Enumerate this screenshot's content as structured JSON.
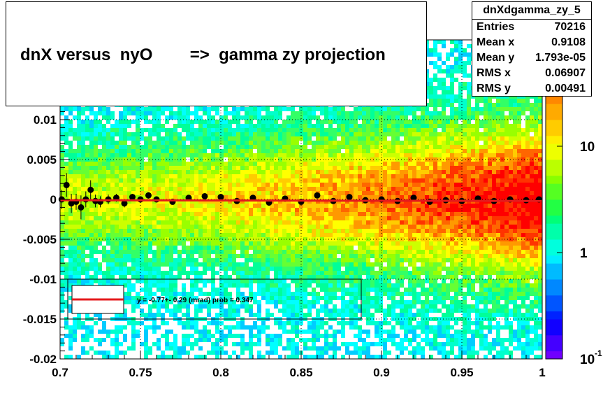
{
  "title": "dnX versus  nyO        =>  gamma zy projection",
  "stats": {
    "name": "dnXdgamma_zy_5",
    "rows": [
      {
        "label": "Entries",
        "value": "70216"
      },
      {
        "label": "Mean x",
        "value": "0.9108"
      },
      {
        "label": "Mean y",
        "value": "1.793e-05"
      },
      {
        "label": "RMS x",
        "value": "0.06907"
      },
      {
        "label": "RMS y",
        "value": "0.00491"
      }
    ]
  },
  "chart_data": {
    "type": "heatmap",
    "title": "dnX versus  nyO        =>  gamma zy projection",
    "xlabel": "",
    "ylabel": "",
    "xlim": [
      0.7,
      1.0
    ],
    "ylim": [
      -0.02,
      0.02
    ],
    "x_ticks": [
      {
        "value": 0.7,
        "label": "0.7"
      },
      {
        "value": 0.75,
        "label": "0.75"
      },
      {
        "value": 0.8,
        "label": "0.8"
      },
      {
        "value": 0.85,
        "label": "0.85"
      },
      {
        "value": 0.9,
        "label": "0.9"
      },
      {
        "value": 0.95,
        "label": "0.95"
      },
      {
        "value": 1.0,
        "label": "1"
      }
    ],
    "y_ticks": [
      {
        "value": -0.02,
        "label": "-0.02"
      },
      {
        "value": -0.015,
        "label": "-0.015"
      },
      {
        "value": -0.01,
        "label": "-0.01"
      },
      {
        "value": -0.005,
        "label": "-0.005"
      },
      {
        "value": 0,
        "label": "0"
      },
      {
        "value": 0.005,
        "label": "0.005"
      },
      {
        "value": 0.01,
        "label": "0.01"
      }
    ],
    "grid": true,
    "colorbar": {
      "scale": "log",
      "range": [
        0.1,
        100
      ],
      "labels": [
        {
          "value": 10,
          "label": "10"
        },
        {
          "value": 1,
          "label": "1"
        },
        {
          "value": 0.1,
          "label": "10",
          "exponent": "-1"
        }
      ]
    },
    "profile_points": [
      {
        "x": 0.701,
        "y": 0.0,
        "err": 0.0012
      },
      {
        "x": 0.704,
        "y": 0.0018,
        "err": 0.0015
      },
      {
        "x": 0.707,
        "y": -0.0005,
        "err": 0.0012
      },
      {
        "x": 0.71,
        "y": -0.0003,
        "err": 0.001
      },
      {
        "x": 0.713,
        "y": -0.001,
        "err": 0.0015
      },
      {
        "x": 0.716,
        "y": 0.0,
        "err": 0.001
      },
      {
        "x": 0.719,
        "y": 0.0012,
        "err": 0.0012
      },
      {
        "x": 0.722,
        "y": -0.0002,
        "err": 0.0008
      },
      {
        "x": 0.725,
        "y": -0.0003,
        "err": 0.0007
      },
      {
        "x": 0.73,
        "y": 0.0,
        "err": 0.0006
      },
      {
        "x": 0.735,
        "y": 0.0002,
        "err": 0.0005
      },
      {
        "x": 0.74,
        "y": -0.0005,
        "err": 0.0005
      },
      {
        "x": 0.745,
        "y": 0.0003,
        "err": 0.0004
      },
      {
        "x": 0.75,
        "y": 0.0,
        "err": 0.0004
      },
      {
        "x": 0.755,
        "y": 0.0005,
        "err": 0.0004
      },
      {
        "x": 0.76,
        "y": 0.0,
        "err": 0.0003
      },
      {
        "x": 0.77,
        "y": -0.0003,
        "err": 0.0003
      },
      {
        "x": 0.78,
        "y": 0.0002,
        "err": 0.0003
      },
      {
        "x": 0.79,
        "y": 0.0004,
        "err": 0.0003
      },
      {
        "x": 0.8,
        "y": 0.0003,
        "err": 0.0003
      },
      {
        "x": 0.81,
        "y": -0.0002,
        "err": 0.0003
      },
      {
        "x": 0.82,
        "y": 0.0002,
        "err": 0.0003
      },
      {
        "x": 0.83,
        "y": -0.0004,
        "err": 0.0003
      },
      {
        "x": 0.84,
        "y": 0.0001,
        "err": 0.0003
      },
      {
        "x": 0.85,
        "y": -0.0003,
        "err": 0.0003
      },
      {
        "x": 0.86,
        "y": 0.0005,
        "err": 0.0002
      },
      {
        "x": 0.87,
        "y": -0.0002,
        "err": 0.0002
      },
      {
        "x": 0.88,
        "y": 0.0003,
        "err": 0.0002
      },
      {
        "x": 0.89,
        "y": -0.0001,
        "err": 0.0002
      },
      {
        "x": 0.9,
        "y": 0.0,
        "err": 0.0002
      },
      {
        "x": 0.91,
        "y": -0.0002,
        "err": 0.0002
      },
      {
        "x": 0.92,
        "y": 0.0002,
        "err": 0.0002
      },
      {
        "x": 0.93,
        "y": -0.0003,
        "err": 0.0002
      },
      {
        "x": 0.94,
        "y": -0.0001,
        "err": 0.0002
      },
      {
        "x": 0.95,
        "y": -0.0002,
        "err": 0.0002
      },
      {
        "x": 0.96,
        "y": 0.0001,
        "err": 0.0002
      },
      {
        "x": 0.97,
        "y": -0.0002,
        "err": 0.0002
      },
      {
        "x": 0.98,
        "y": 0.0,
        "err": 0.0002
      },
      {
        "x": 0.99,
        "y": -0.0001,
        "err": 0.0002
      },
      {
        "x": 0.998,
        "y": 0.0,
        "err": 0.0002
      }
    ],
    "fit": {
      "x0": 0.7,
      "x1": 1.0,
      "y0": -0.0001,
      "y1": -0.0002,
      "color": "#e41a1c"
    },
    "legend": {
      "placement": "bottom-left",
      "text": "y =  -0.77+- 0.29 (mrad) prob = 0.347"
    }
  }
}
